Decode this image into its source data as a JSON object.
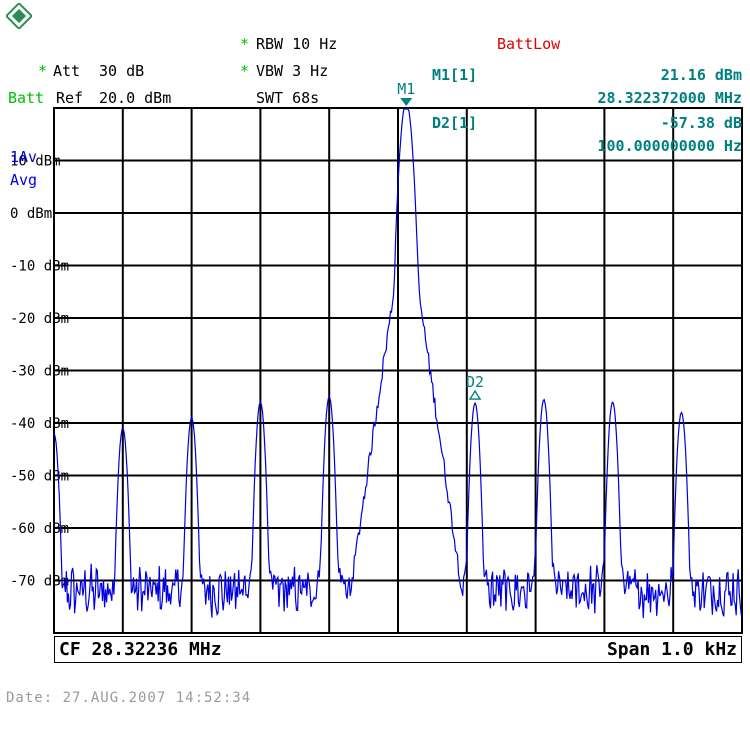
{
  "header": {
    "att_star": "*",
    "att_label": "Att",
    "att_value": "30 dB",
    "batt_label": "Batt",
    "ref_label": "Ref",
    "ref_value": "20.0 dBm",
    "rbw_star": "*",
    "rbw": "RBW 10 Hz",
    "vbw_star": "*",
    "vbw": "VBW 3 Hz",
    "swt": "SWT 68s",
    "batt_low": "BattLow"
  },
  "markers": {
    "m1_label": "M1[1]",
    "m1_level": "21.16 dBm",
    "m1_freq": "28.322372000 MHz",
    "d2_label": "D2[1]",
    "d2_level": "-57.38 dB",
    "d2_freq": "100.000000000 Hz",
    "m1_tag": "M1",
    "d2_tag": "D2"
  },
  "trace_info": {
    "line1": "1Av",
    "line2": "Avg"
  },
  "footer": {
    "cf": "CF 28.32236 MHz",
    "span": "Span 1.0 kHz",
    "date": "Date: 27.AUG.2007  14:52:34"
  },
  "colors": {
    "trace": "#0000e0",
    "marker": "#007f7f",
    "grid": "#000000",
    "asterisk": "#00c000",
    "batt_low": "#e00000"
  },
  "chart_data": {
    "type": "line",
    "title": "",
    "xlabel": "",
    "ylabel": "",
    "center_freq_mhz": 28.32236,
    "span_hz": 1000,
    "x_unit": "Hz offset from CF",
    "xlim": [
      -500,
      500
    ],
    "ylim": [
      -80,
      20
    ],
    "ytick_labels": [
      "10 dBm",
      "0 dBm",
      "-10 dBm",
      "-20 dBm",
      "-30 dBm",
      "-40 dBm",
      "-50 dBm",
      "-60 dBm",
      "-70 dBm"
    ],
    "ytick_values": [
      10,
      0,
      -10,
      -20,
      -30,
      -40,
      -50,
      -60,
      -70
    ],
    "grid": true,
    "noise_floor_dbm": -72,
    "series": [
      {
        "peaks": [
          {
            "x": -500,
            "y": -42
          },
          {
            "x": -400,
            "y": -41
          },
          {
            "x": -300,
            "y": -39
          },
          {
            "x": -200,
            "y": -36
          },
          {
            "x": -100,
            "y": -35
          },
          {
            "x": 12,
            "y": 21.16
          },
          {
            "x": 112,
            "y": -36.2
          },
          {
            "x": 212,
            "y": -35.5
          },
          {
            "x": 312,
            "y": -36
          },
          {
            "x": 412,
            "y": -38
          }
        ]
      }
    ]
  }
}
